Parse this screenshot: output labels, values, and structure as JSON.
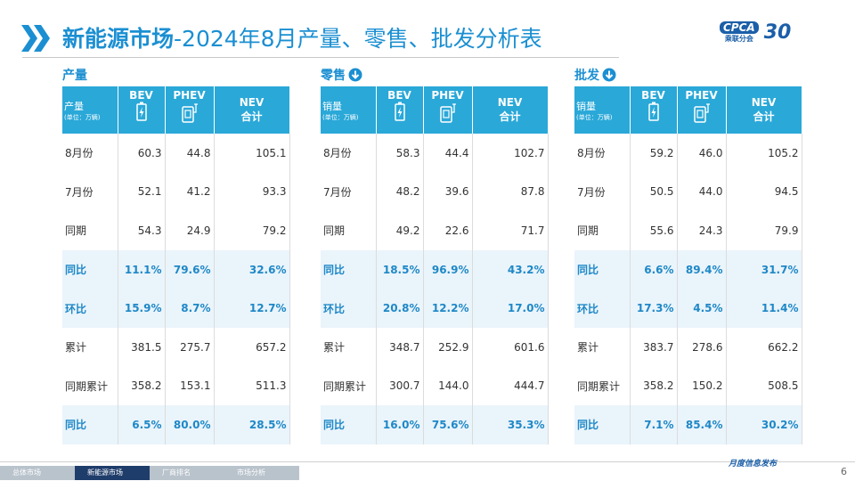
{
  "header": {
    "title_bold": "新能源市场",
    "title_rest": "-2024年8月产量、零售、批发分析表",
    "logo": {
      "brand": "CPCA",
      "org": "乘联分会",
      "anniversary": "30"
    }
  },
  "tables": [
    {
      "section": "产量",
      "header": {
        "label": "产量",
        "unit": "(单位：万辆)",
        "bev": "BEV",
        "phev": "PHEV",
        "nev": "NEV",
        "nev_sub": "合计"
      },
      "rows": [
        [
          "8月份",
          "60.3",
          "44.8",
          "105.1"
        ],
        [
          "7月份",
          "52.1",
          "41.2",
          "93.3"
        ],
        [
          "同期",
          "54.3",
          "24.9",
          "79.2"
        ],
        [
          "同比",
          "11.1%",
          "79.6%",
          "32.6%"
        ],
        [
          "环比",
          "15.9%",
          "8.7%",
          "12.7%"
        ],
        [
          "累计",
          "381.5",
          "275.7",
          "657.2"
        ],
        [
          "同期累计",
          "358.2",
          "153.1",
          "511.3"
        ],
        [
          "同比",
          "6.5%",
          "80.0%",
          "28.5%"
        ]
      ]
    },
    {
      "section": "零售",
      "header": {
        "label": "销量",
        "unit": "(单位：万辆)",
        "bev": "BEV",
        "phev": "PHEV",
        "nev": "NEV",
        "nev_sub": "合计"
      },
      "rows": [
        [
          "8月份",
          "58.3",
          "44.4",
          "102.7"
        ],
        [
          "7月份",
          "48.2",
          "39.6",
          "87.8"
        ],
        [
          "同期",
          "49.2",
          "22.6",
          "71.7"
        ],
        [
          "同比",
          "18.5%",
          "96.9%",
          "43.2%"
        ],
        [
          "环比",
          "20.8%",
          "12.2%",
          "17.0%"
        ],
        [
          "累计",
          "348.7",
          "252.9",
          "601.6"
        ],
        [
          "同期累计",
          "300.7",
          "144.0",
          "444.7"
        ],
        [
          "同比",
          "16.0%",
          "75.6%",
          "35.3%"
        ]
      ]
    },
    {
      "section": "批发",
      "header": {
        "label": "销量",
        "unit": "(单位：万辆)",
        "bev": "BEV",
        "phev": "PHEV",
        "nev": "NEV",
        "nev_sub": "合计"
      },
      "rows": [
        [
          "8月份",
          "59.2",
          "46.0",
          "105.2"
        ],
        [
          "7月份",
          "50.5",
          "44.0",
          "94.5"
        ],
        [
          "同期",
          "55.6",
          "24.3",
          "79.9"
        ],
        [
          "同比",
          "6.6%",
          "89.4%",
          "31.7%"
        ],
        [
          "环比",
          "17.3%",
          "4.5%",
          "11.4%"
        ],
        [
          "累计",
          "383.7",
          "278.6",
          "662.2"
        ],
        [
          "同期累计",
          "358.2",
          "150.2",
          "508.5"
        ],
        [
          "同比",
          "7.1%",
          "85.4%",
          "30.2%"
        ]
      ]
    }
  ],
  "footer": {
    "tabs": [
      "总体市场",
      "新能源市场",
      "厂商排名",
      "市场分析"
    ],
    "tagline": "月度信息发布",
    "page": "6"
  }
}
